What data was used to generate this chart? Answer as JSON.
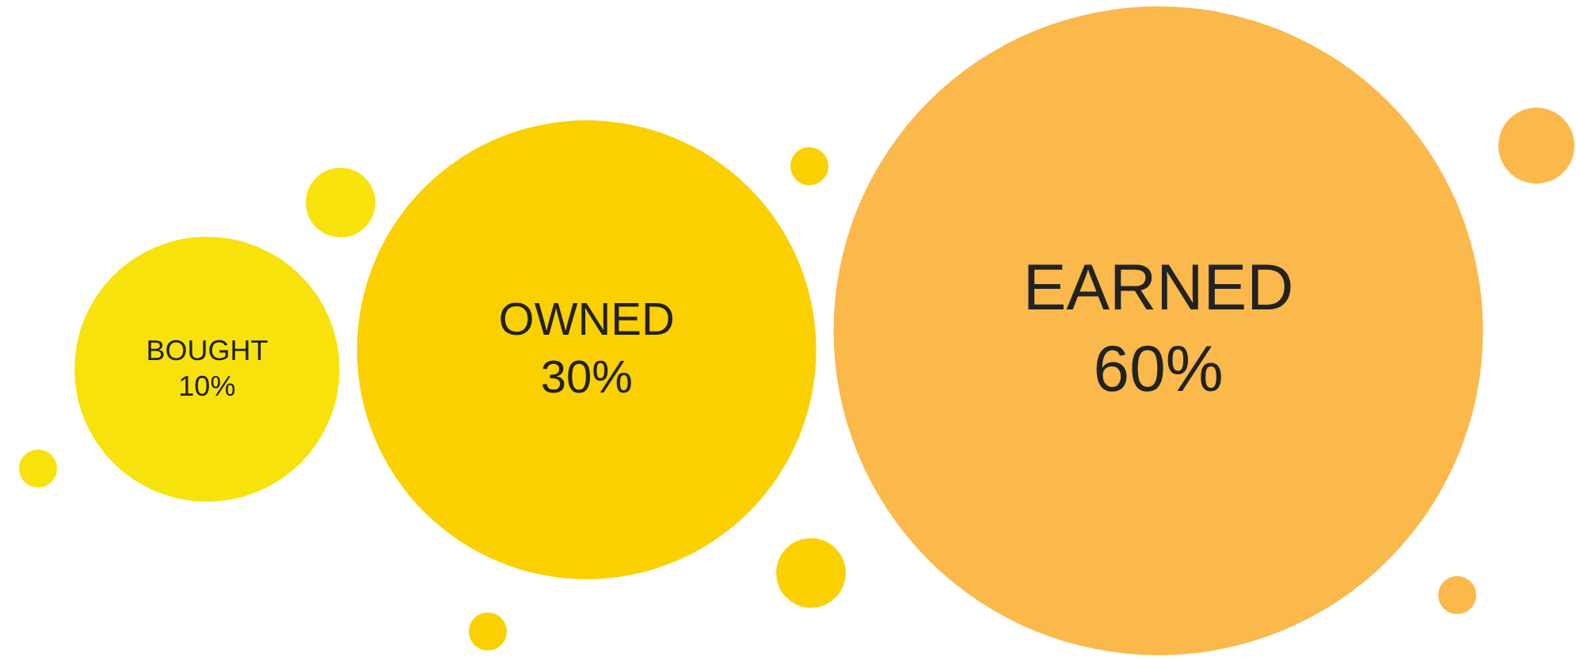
{
  "chart_data": {
    "type": "other",
    "categories": [
      "BOUGHT",
      "OWNED",
      "EARNED"
    ],
    "values": [
      10,
      30,
      60
    ],
    "value_labels": [
      "10%",
      "30%",
      "60%"
    ],
    "colors": [
      "#f8e20c",
      "#fbd000",
      "#fbb84b"
    ]
  }
}
